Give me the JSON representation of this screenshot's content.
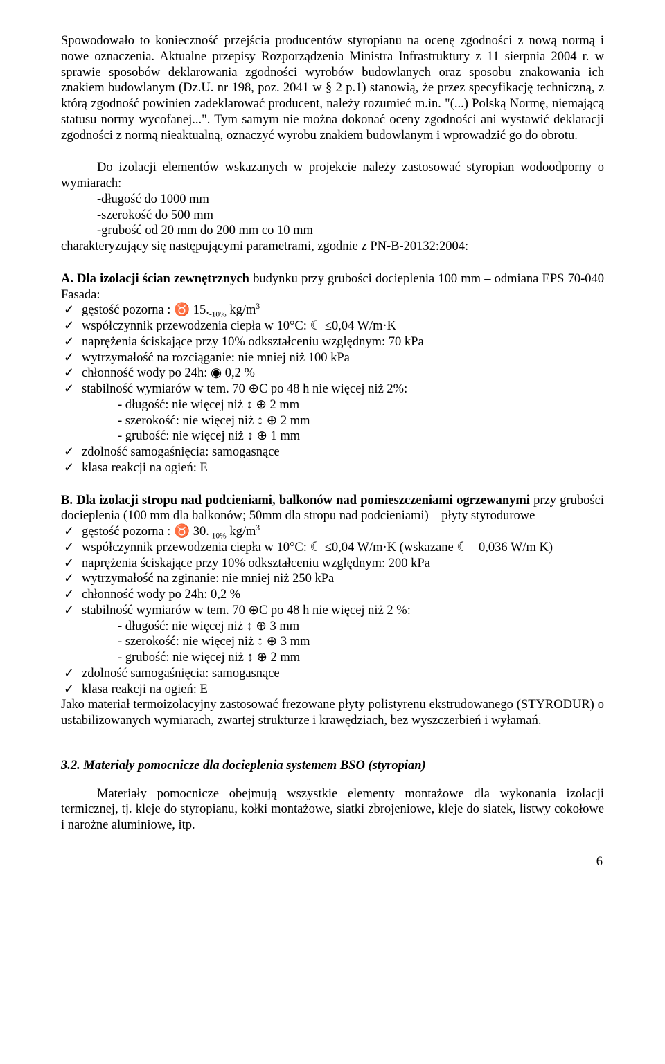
{
  "p1": "Spowodowało to konieczność przejścia producentów styropianu na ocenę zgodności z nową normą i nowe oznaczenia. Aktualne przepisy Rozporządzenia Ministra Infrastruktury z 11 sierpnia 2004 r. w sprawie sposobów deklarowania zgodności wyrobów budowlanych oraz sposobu znakowania ich znakiem budowlanym (Dz.U. nr 198, poz. 2041 w § 2 p.1) stanowią, że przez specyfikację techniczną, z którą zgodność powinien zadeklarować producent, należy rozumieć m.in. \"(...) Polską Normę, niemającą statusu normy wycofanej...\". Tym samym nie można dokonać oceny zgodności ani wystawić deklaracji zgodności z normą nieaktualną, oznaczyć wyrobu znakiem budowlanym i wprowadzić go do obrotu.",
  "p2_lead": "Do izolacji elementów wskazanych w projekcie należy zastosować styropian wodoodporny o wymiarach:",
  "p2_l1": "-długość do 1000 mm",
  "p2_l2": "-szerokość do 500 mm",
  "p2_l3": "-grubość od 20 mm do 200 mm co 10 mm",
  "p2_tail": "charakteryzujący się następującymi parametrami, zgodnie z PN-B-20132:2004:",
  "A_head_bold": "A. Dla izolacji ścian zewnętrznych ",
  "A_head_rest": "budynku przy grubości docieplenia 100 mm – odmiana EPS 70-040 Fasada:",
  "A_items": {
    "i1a": "gęstość pozorna : ♉ 15.",
    "i1b": "-10%",
    "i1c": " kg/m",
    "i2": "współczynnik przewodzenia ciepła w 10°C:  ☾ ≤0,04 W/m·K",
    "i3": "naprężenia ściskające przy 10% odkształceniu względnym: 70 kPa",
    "i4": "wytrzymałość na rozciąganie: nie mniej niż 100 kPa",
    "i5": "chłonność wody po 24h: ◉ 0,2 %",
    "i6": "stabilność wymiarów w tem. 70 ⊕C po 48 h nie więcej niż 2%:",
    "i6a": "- długość: nie więcej niż ↕ ⊕ 2 mm",
    "i6b": "- szerokość: nie więcej niż ↕ ⊕ 2 mm",
    "i6c": "- grubość: nie więcej niż ↕ ⊕ 1 mm",
    "i7": "zdolność samogaśnięcia:  samogasnące",
    "i8": "klasa reakcji na ogień:  E"
  },
  "B_head_bold": "B. Dla izolacji stropu nad podcieniami, balkonów nad pomieszczeniami ogrzewanymi ",
  "B_head_rest": "  przy grubości docieplenia (100 mm dla balkonów; 50mm dla stropu nad podcieniami) – płyty styrodurowe",
  "B_items": {
    "i1a": "gęstość pozorna : ♉ 30.",
    "i1b": "-10%",
    "i1c": " kg/m",
    "i2": "współczynnik przewodzenia ciepła w 10°C:  ☾ ≤0,04 W/m·K (wskazane ☾ =0,036 W/m K)",
    "i3": "naprężenia ściskające przy 10% odkształceniu względnym: 200 kPa",
    "i4": "wytrzymałość na zginanie: nie mniej niż 250 kPa",
    "i5": "chłonność wody po 24h:  0,2 %",
    "i6": "stabilność wymiarów w tem. 70 ⊕C po 48 h nie więcej niż 2 %:",
    "i6a": "- długość: nie więcej niż ↕ ⊕ 3 mm",
    "i6b": "- szerokość: nie więcej niż ↕ ⊕ 3 mm",
    "i6c": "- grubość: nie więcej niż ↕ ⊕ 2 mm",
    "i7": "zdolność samogaśnięcia:  samogasnące",
    "i8": "klasa reakcji na ogień:  E"
  },
  "B_tail": "Jako materiał termoizolacyjny zastosować frezowane płyty polistyrenu ekstrudowanego  (STYRODUR) o ustabilizowanych wymiarach, zwartej strukturze i krawędziach, bez wyszczerbień i wyłamań.",
  "sec32_title": "3.2. Materiały pomocnicze dla  docieplenia systemem BSO (styropian)",
  "sec32_body": "Materiały pomocnicze obejmują wszystkie elementy montażowe dla wykonania izolacji termicznej, tj. kleje do styropianu, kołki montażowe, siatki zbrojeniowe, kleje do siatek, listwy cokołowe i narożne aluminiowe, itp.",
  "tick": "✓",
  "page_number": "6",
  "cube_sup": "3"
}
